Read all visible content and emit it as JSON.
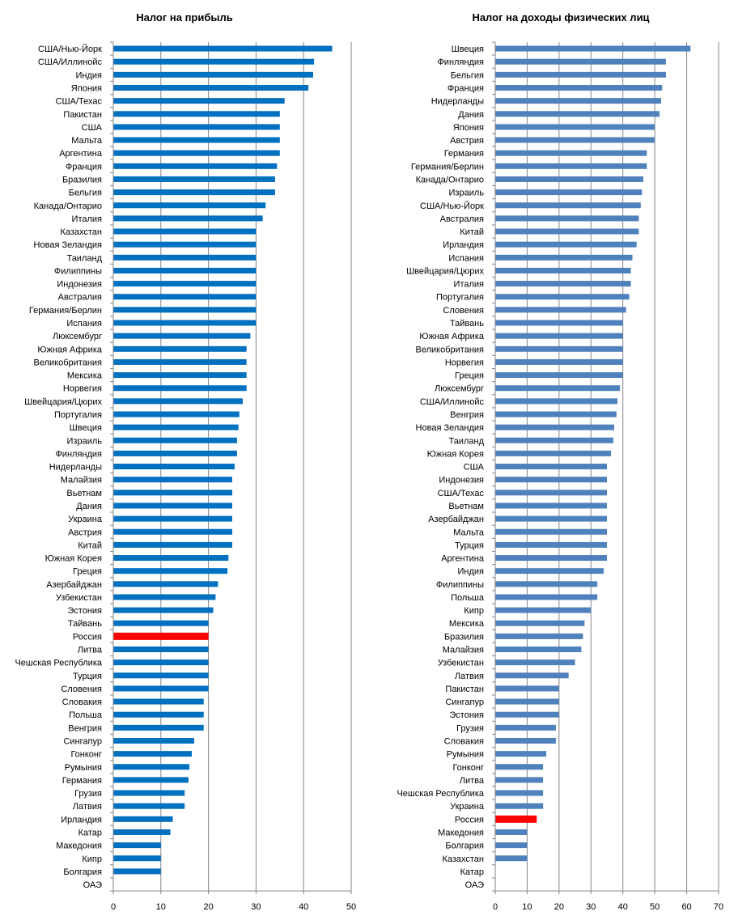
{
  "chart_data": [
    {
      "type": "bar",
      "orientation": "horizontal",
      "title": "Налог на прибыль",
      "xlim": [
        0,
        50
      ],
      "xticks": [
        0,
        10,
        20,
        30,
        40,
        50
      ],
      "grid": true,
      "color": "#0070C0",
      "highlight_color": "#FF0000",
      "highlight": "Россия",
      "categories": [
        "США/Нью-Йорк",
        "США/Иллинойс",
        "Индия",
        "Япония",
        "США/Техас",
        "Пакистан",
        "США",
        "Мальта",
        "Аргентина",
        "Франция",
        "Бразилия",
        "Бельгия",
        "Канада/Онтарио",
        "Италия",
        "Казахстан",
        "Новая Зеландия",
        "Таиланд",
        "Филиппины",
        "Индонезия",
        "Австралия",
        "Германия/Берлин",
        "Испания",
        "Люксембург",
        "Южная Африка",
        "Великобритания",
        "Мексика",
        "Норвегия",
        "Швейцария/Цюрих",
        "Португалия",
        "Швеция",
        "Израиль",
        "Финляндия",
        "Нидерланды",
        "Малайзия",
        "Вьетнам",
        "Дания",
        "Украина",
        "Австрия",
        "Китай",
        "Южная Корея",
        "Греция",
        "Азербайджан",
        "Узбекистан",
        "Эстония",
        "Тайвань",
        "Россия",
        "Литва",
        "Чешская Республика",
        "Турция",
        "Словения",
        "Словакия",
        "Польша",
        "Венгрия",
        "Сингапур",
        "Гонконг",
        "Румыния",
        "Германия",
        "Грузия",
        "Латвия",
        "Ирландия",
        "Катар",
        "Македония",
        "Кипр",
        "Болгария",
        "ОАЭ"
      ],
      "values": [
        46,
        42.2,
        42,
        41,
        36,
        35,
        35,
        35,
        35,
        34.4,
        34,
        34,
        32,
        31.4,
        30,
        30,
        30,
        30,
        30,
        30,
        30,
        30,
        28.8,
        28,
        28,
        28,
        28,
        27.2,
        26.5,
        26.3,
        26,
        26,
        25.5,
        25,
        25,
        25,
        25,
        25,
        25,
        24.2,
        24,
        22,
        21.5,
        21,
        20,
        20,
        20,
        20,
        20,
        20,
        19,
        19,
        19,
        17,
        16.5,
        16,
        15.8,
        15,
        15,
        12.5,
        12,
        10,
        10,
        10,
        0
      ]
    },
    {
      "type": "bar",
      "orientation": "horizontal",
      "title": "Налог на доходы физических лиц",
      "xlim": [
        0,
        70
      ],
      "xticks": [
        0,
        10,
        20,
        30,
        40,
        50,
        60,
        70
      ],
      "grid": true,
      "color": "#4F81BD",
      "highlight_color": "#FF0000",
      "highlight": "Россия",
      "categories": [
        "Швеция",
        "Финляндия",
        "Бельгия",
        "Франция",
        "Нидерланды",
        "Дания",
        "Япония",
        "Австрия",
        "Германия",
        "Германия/Берлин",
        "Канада/Онтарио",
        "Израиль",
        "США/Нью-Йорк",
        "Австралия",
        "Китай",
        "Ирландия",
        "Испания",
        "Швейцария/Цюрих",
        "Италия",
        "Португалия",
        "Словения",
        "Тайвань",
        "Южная Африка",
        "Великобритания",
        "Норвегия",
        "Греция",
        "Люксембург",
        "США/Иллинойс",
        "Венгрия",
        "Новая Зеландия",
        "Таиланд",
        "Южная Корея",
        "США",
        "Индонезия",
        "США/Техас",
        "Вьетнам",
        "Азербайджан",
        "Мальта",
        "Турция",
        "Аргентина",
        "Индия",
        "Филиппины",
        "Польша",
        "Кипр",
        "Мексика",
        "Бразилия",
        "Малайзия",
        "Узбекистан",
        "Латвия",
        "Пакистан",
        "Сингапур",
        "Эстония",
        "Грузия",
        "Словакия",
        "Румыния",
        "Гонконг",
        "Литва",
        "Чешская Республика",
        "Украина",
        "Россия",
        "Македония",
        "Болгария",
        "Казахстан",
        "Катар",
        "ОАЭ"
      ],
      "values": [
        61.2,
        53.5,
        53.5,
        52.3,
        52,
        51.5,
        50,
        50,
        47.5,
        47.5,
        46.4,
        46,
        45.6,
        45,
        45,
        44.3,
        43,
        42.5,
        42.5,
        42,
        41,
        40,
        40,
        40,
        40,
        40,
        39.1,
        38.3,
        38,
        37.3,
        37,
        36.3,
        35,
        35,
        35,
        35,
        35,
        35,
        35,
        35,
        34,
        32,
        32,
        30,
        28,
        27.5,
        27,
        25,
        23,
        20,
        20,
        20,
        19,
        19,
        16,
        15,
        15,
        15,
        15,
        13,
        10,
        10,
        10,
        0,
        0
      ]
    }
  ]
}
